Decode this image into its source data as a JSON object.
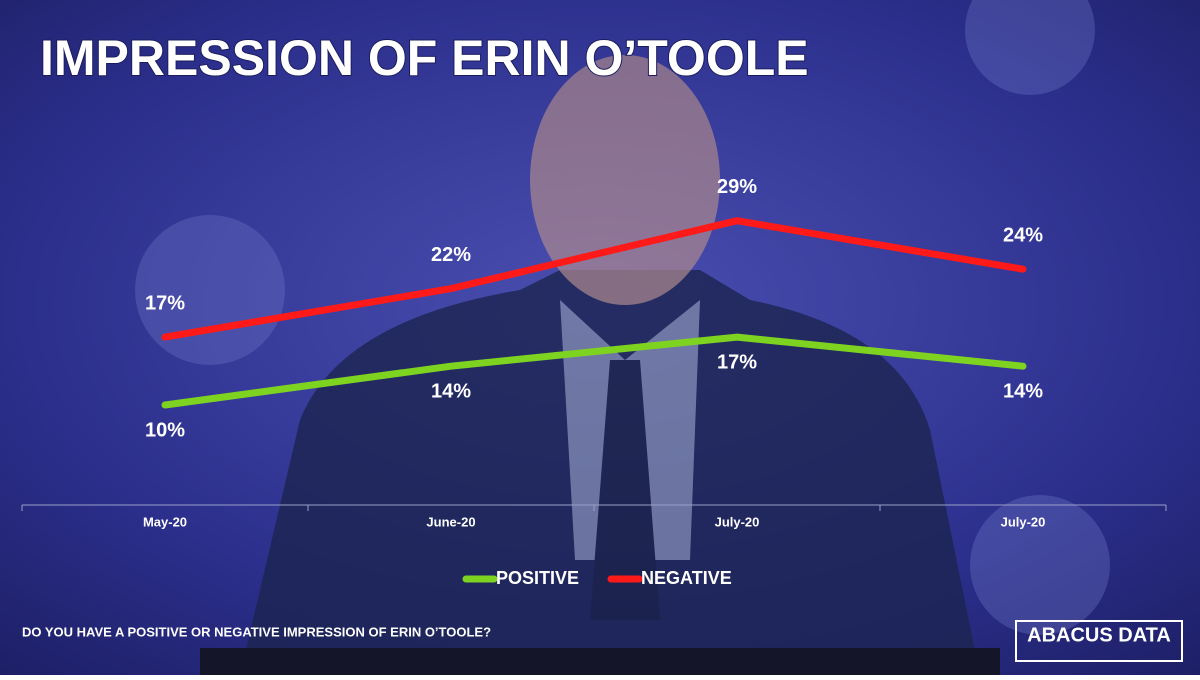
{
  "chart_data": {
    "type": "line",
    "title": "IMPRESSION OF ERIN O’TOOLE",
    "note": "DO YOU HAVE A POSITIVE OR NEGATIVE IMPRESSION OF ERIN O’TOOLE?",
    "logo": "ABACUS DATA",
    "categories": [
      "May-20",
      "June-20",
      "July-20",
      "July-20"
    ],
    "ylim": [
      0,
      40
    ],
    "legend": "bottom",
    "series": [
      {
        "name": "POSITIVE",
        "color": "#7ed321",
        "values": [
          10,
          14,
          17,
          14
        ],
        "value_labels": [
          "10%",
          "14%",
          "17%",
          "14%"
        ]
      },
      {
        "name": "NEGATIVE",
        "color": "#ff1a1a",
        "values": [
          17,
          22,
          29,
          24
        ],
        "value_labels": [
          "17%",
          "22%",
          "29%",
          "24%"
        ]
      }
    ]
  }
}
